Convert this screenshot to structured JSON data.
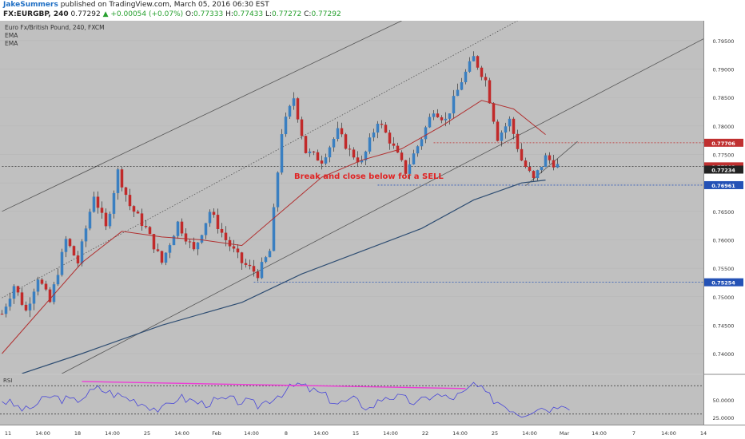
{
  "header": {
    "author": "JakeSummers",
    "published_text": "published on TradingView.com, March 05, 2016 06:30 EST",
    "symbol": "FX:EURGBP, 240",
    "last": "0.77292",
    "change": "+0.00054 (+0.07%)",
    "o_label": "O:",
    "o_value": "0.77333",
    "h_label": "H:",
    "h_value": "0.77433",
    "l_label": "L:",
    "l_value": "0.77272",
    "c_label": "C:",
    "c_value": "0.77292"
  },
  "legend": {
    "title": "Euro Fx/British Pound, 240, FXCM",
    "ema1": "EMA",
    "ema2": "EMA"
  },
  "annotation": "Break and close below for a SELL",
  "rsi_label": "RSI",
  "colors": {
    "background": "#c0c0c0",
    "bull_candle": "#3a7fc1",
    "bear_candle": "#c12a2a",
    "ema_fast": "#b13030",
    "ema_slow": "#2e4d72",
    "rsi_line": "#4a48d8",
    "rsi_divergence": "#ee3bd6",
    "red_level": "#c03030",
    "blue_level": "#2452b6"
  },
  "chart_data": {
    "type": "candlestick",
    "ylim": [
      0.7365,
      0.7985
    ],
    "y_ticks": [
      "0.79500",
      "0.79000",
      "0.78500",
      "0.78000",
      "0.77500",
      "0.77000",
      "0.76500",
      "0.76000",
      "0.75500",
      "0.75000",
      "0.74500",
      "0.74000"
    ],
    "x_ticks": [
      "11",
      "14:00",
      "18",
      "14:00",
      "25",
      "14:00",
      "Feb",
      "14:00",
      "8",
      "14:00",
      "15",
      "14:00",
      "22",
      "14:00",
      "25",
      "14:00",
      "Mar",
      "14:00",
      "7",
      "14:00",
      "14"
    ],
    "price_labels": [
      {
        "value": "0.77706",
        "level": 0.77706,
        "kind": "red"
      },
      {
        "value": "0.77292",
        "level": 0.77292,
        "kind": "red"
      },
      {
        "value": "0.77234",
        "level": 0.77234,
        "kind": "dark"
      },
      {
        "value": "0.76961",
        "level": 0.76961,
        "kind": "blue"
      },
      {
        "value": "0.75254",
        "level": 0.75254,
        "kind": "blue"
      }
    ],
    "candle_path": [
      [
        0,
        0.747
      ],
      [
        3,
        0.752
      ],
      [
        6,
        0.7475
      ],
      [
        9,
        0.7535
      ],
      [
        12,
        0.749
      ],
      [
        16,
        0.76
      ],
      [
        19,
        0.756
      ],
      [
        23,
        0.768
      ],
      [
        26,
        0.762
      ],
      [
        29,
        0.772
      ],
      [
        32,
        0.766
      ],
      [
        36,
        0.762
      ],
      [
        40,
        0.756
      ],
      [
        44,
        0.763
      ],
      [
        48,
        0.758
      ],
      [
        52,
        0.765
      ],
      [
        56,
        0.76
      ],
      [
        60,
        0.756
      ],
      [
        64,
        0.754
      ],
      [
        67,
        0.758
      ],
      [
        70,
        0.779
      ],
      [
        73,
        0.785
      ],
      [
        76,
        0.7755
      ],
      [
        80,
        0.774
      ],
      [
        84,
        0.779
      ],
      [
        87,
        0.7755
      ],
      [
        90,
        0.7735
      ],
      [
        94,
        0.781
      ],
      [
        97,
        0.7775
      ],
      [
        101,
        0.772
      ],
      [
        105,
        0.778
      ],
      [
        108,
        0.783
      ],
      [
        111,
        0.781
      ],
      [
        115,
        0.788
      ],
      [
        118,
        0.792
      ],
      [
        121,
        0.788
      ],
      [
        124,
        0.778
      ],
      [
        127,
        0.781
      ],
      [
        130,
        0.774
      ],
      [
        133,
        0.7705
      ],
      [
        136,
        0.7745
      ],
      [
        139,
        0.773
      ]
    ],
    "ema_fast_path": [
      [
        0,
        0.74
      ],
      [
        10,
        0.748
      ],
      [
        20,
        0.756
      ],
      [
        30,
        0.7615
      ],
      [
        40,
        0.7605
      ],
      [
        50,
        0.76
      ],
      [
        60,
        0.759
      ],
      [
        70,
        0.765
      ],
      [
        80,
        0.771
      ],
      [
        90,
        0.774
      ],
      [
        100,
        0.776
      ],
      [
        110,
        0.78
      ],
      [
        120,
        0.7845
      ],
      [
        128,
        0.783
      ],
      [
        136,
        0.7785
      ]
    ],
    "ema_slow_path": [
      [
        5,
        0.7365
      ],
      [
        20,
        0.74
      ],
      [
        40,
        0.745
      ],
      [
        60,
        0.749
      ],
      [
        75,
        0.754
      ],
      [
        90,
        0.758
      ],
      [
        105,
        0.762
      ],
      [
        118,
        0.767
      ],
      [
        130,
        0.77
      ],
      [
        136,
        0.7705
      ]
    ],
    "channel_lines": [
      {
        "from": [
          0,
          0.765
        ],
        "to": [
          100,
          0.7985
        ],
        "style": "solid"
      },
      {
        "from": [
          0,
          0.7498
        ],
        "to": [
          129,
          0.7985
        ],
        "style": "dotted"
      },
      {
        "from": [
          0,
          0.731
        ],
        "to": [
          176,
          0.7955
        ],
        "style": "solid"
      }
    ],
    "trendline": {
      "from": [
        131,
        0.7695
      ],
      "to": [
        144,
        0.7773
      ]
    },
    "horizontal_levels": [
      {
        "value": 0.77706,
        "from": 108,
        "kind": "red"
      },
      {
        "value": 0.77292,
        "from": 0,
        "kind": "dark"
      },
      {
        "value": 0.76961,
        "from": 94,
        "kind": "blue"
      },
      {
        "value": 0.75254,
        "from": 63,
        "kind": "blue"
      }
    ],
    "rsi": {
      "ylim": [
        15,
        85
      ],
      "ticks": [
        "50.0000",
        "25.0000"
      ],
      "upper_band": 70,
      "lower_band": 30,
      "path": [
        [
          0,
          50
        ],
        [
          6,
          35
        ],
        [
          12,
          55
        ],
        [
          18,
          48
        ],
        [
          24,
          66
        ],
        [
          30,
          55
        ],
        [
          34,
          48
        ],
        [
          40,
          35
        ],
        [
          44,
          54
        ],
        [
          50,
          45
        ],
        [
          56,
          50
        ],
        [
          60,
          48
        ],
        [
          64,
          42
        ],
        [
          70,
          60
        ],
        [
          74,
          72
        ],
        [
          80,
          58
        ],
        [
          84,
          45
        ],
        [
          88,
          50
        ],
        [
          92,
          38
        ],
        [
          96,
          56
        ],
        [
          100,
          52
        ],
        [
          104,
          45
        ],
        [
          108,
          58
        ],
        [
          112,
          52
        ],
        [
          116,
          60
        ],
        [
          118,
          73
        ],
        [
          122,
          54
        ],
        [
          126,
          42
        ],
        [
          130,
          30
        ],
        [
          134,
          40
        ],
        [
          138,
          38
        ],
        [
          140,
          48
        ],
        [
          142,
          42
        ]
      ],
      "divergence": {
        "from": [
          20,
          76
        ],
        "to": [
          116,
          66
        ]
      }
    }
  }
}
